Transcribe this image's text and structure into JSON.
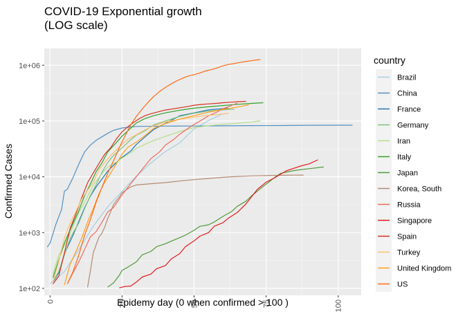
{
  "chart_data": {
    "type": "line",
    "title": [
      "COVID-19 Exponential growth",
      "(LOG scale)"
    ],
    "xlabel": "Epidemy day (0 when confirmed > 100 )",
    "ylabel": "Confirmed Cases",
    "xlim": [
      -2,
      108
    ],
    "ylim": [
      75,
      2000000
    ],
    "y_scale": "log10",
    "grid": true,
    "legend_position": "right",
    "legend_title": "country",
    "x_ticks": [
      0,
      25,
      50,
      75,
      100
    ],
    "x_tick_labels": [
      "0",
      "25",
      "50",
      "75",
      "100"
    ],
    "y_ticks": [
      100,
      1000,
      10000,
      100000,
      1000000
    ],
    "y_tick_labels": [
      "1e+02",
      "1e+03",
      "1e+04",
      "1e+05",
      "1e+06"
    ],
    "series": [
      {
        "name": "Brazil",
        "color": "#a6cee3",
        "x": [
          0,
          5,
          10,
          15,
          20,
          25,
          30,
          35,
          40,
          45,
          50,
          55,
          60
        ],
        "y": [
          121,
          200,
          500,
          1300,
          2900,
          5500,
          10300,
          17700,
          28300,
          40700,
          71900,
          101800,
          135100
        ]
      },
      {
        "name": "China",
        "color": "#5090c4",
        "x": [
          -1,
          0,
          2,
          4,
          5,
          6,
          8,
          10,
          12,
          14,
          16,
          18,
          20,
          22,
          25,
          30,
          40,
          50,
          60,
          70,
          80,
          90,
          100,
          105
        ],
        "y": [
          548,
          643,
          1400,
          2600,
          5500,
          6000,
          9700,
          17000,
          28000,
          37000,
          45000,
          52000,
          60000,
          68000,
          75000,
          80000,
          81000,
          81300,
          81900,
          82600,
          83000,
          83900,
          84100,
          84100
        ]
      },
      {
        "name": "France",
        "color": "#1f78b4",
        "x": [
          1,
          3,
          5,
          8,
          10,
          12,
          14,
          16,
          18,
          20,
          22,
          25,
          28,
          30,
          33,
          36,
          40,
          45,
          50,
          55,
          62
        ],
        "y": [
          130,
          190,
          420,
          900,
          1600,
          2800,
          4500,
          6600,
          9100,
          12600,
          16000,
          22300,
          29000,
          38100,
          52100,
          70500,
          90700,
          124000,
          140000,
          158000,
          170000
        ]
      },
      {
        "name": "Germany",
        "color": "#7fbf7b",
        "x": [
          1,
          3,
          5,
          7,
          10,
          12,
          14,
          16,
          18,
          20,
          22,
          25,
          28,
          30,
          33,
          36,
          40,
          45,
          50,
          55,
          60,
          64
        ],
        "y": [
          130,
          200,
          400,
          800,
          1500,
          2700,
          4600,
          7200,
          12000,
          18000,
          24000,
          33000,
          46000,
          56000,
          67000,
          85000,
          100000,
          121000,
          138000,
          150000,
          158000,
          163000
        ]
      },
      {
        "name": "Iran",
        "color": "#b2df8a",
        "x": [
          1,
          3,
          5,
          7,
          10,
          12,
          15,
          18,
          20,
          23,
          25,
          28,
          30,
          33,
          36,
          40,
          45,
          50,
          55,
          60,
          65,
          70,
          73
        ],
        "y": [
          180,
          390,
          590,
          980,
          2300,
          3500,
          7100,
          11400,
          14900,
          18400,
          21600,
          27000,
          32300,
          38300,
          44600,
          53000,
          64600,
          76400,
          82200,
          87000,
          91000,
          96400,
          101000
        ]
      },
      {
        "name": "Italy",
        "color": "#33a02c",
        "x": [
          1,
          3,
          5,
          7,
          10,
          12,
          14,
          16,
          18,
          20,
          23,
          25,
          28,
          30,
          33,
          36,
          40,
          45,
          50,
          55,
          60,
          65,
          70,
          74
        ],
        "y": [
          155,
          320,
          650,
          1130,
          2500,
          4600,
          7400,
          12400,
          17700,
          27900,
          41000,
          53600,
          74300,
          92500,
          110600,
          124600,
          140000,
          156000,
          170000,
          180000,
          189000,
          199000,
          207000,
          213000
        ]
      },
      {
        "name": "Japan",
        "color": "#4f9a3a",
        "x": [
          20,
          22,
          24,
          25,
          27,
          30,
          32,
          35,
          37,
          40,
          42,
          45,
          47,
          50,
          52,
          55,
          57,
          60,
          63,
          65,
          68,
          70,
          72,
          74,
          76,
          78,
          80,
          85,
          90,
          95
        ],
        "y": [
          105,
          125,
          170,
          210,
          240,
          300,
          400,
          460,
          560,
          630,
          700,
          810,
          900,
          1100,
          1290,
          1380,
          1550,
          1950,
          2380,
          2960,
          3660,
          4580,
          5560,
          6750,
          8100,
          9800,
          11500,
          13000,
          14000,
          15000
        ]
      },
      {
        "name": "Korea, South",
        "color": "#b58a72",
        "x": [
          13,
          14,
          15,
          16,
          17,
          18,
          19,
          20,
          21,
          22,
          23,
          24,
          25,
          26,
          27,
          28,
          30,
          35,
          40,
          45,
          50,
          55,
          60,
          65,
          70,
          75,
          80,
          85,
          88
        ],
        "y": [
          104,
          204,
          433,
          602,
          833,
          977,
          1261,
          1766,
          2337,
          3150,
          3736,
          4335,
          5186,
          5621,
          6088,
          6593,
          7134,
          7513,
          7869,
          8413,
          8897,
          9332,
          9786,
          10156,
          10384,
          10512,
          10635,
          10699,
          10752
        ]
      },
      {
        "name": "Russia",
        "color": "#ee6a60",
        "x": [
          6,
          8,
          10,
          12,
          14,
          16,
          18,
          20,
          22,
          25,
          28,
          30,
          33,
          35,
          38,
          40,
          43,
          45,
          48,
          50,
          53,
          55,
          58,
          60,
          63,
          65
        ],
        "y": [
          120,
          190,
          300,
          500,
          840,
          1040,
          1530,
          2340,
          2800,
          4730,
          7500,
          10100,
          15800,
          21100,
          27900,
          36800,
          47100,
          57900,
          74600,
          87100,
          106500,
          124100,
          145300,
          165900,
          189900,
          209700
        ]
      },
      {
        "name": "Singapore",
        "color": "#e31a1c",
        "x": [
          24,
          26,
          28,
          30,
          32,
          35,
          37,
          40,
          42,
          45,
          47,
          50,
          52,
          55,
          57,
          60,
          62,
          65,
          68,
          70,
          72,
          75,
          78,
          80,
          82,
          85,
          87,
          90,
          93
        ],
        "y": [
          102,
          108,
          110,
          130,
          160,
          180,
          226,
          255,
          335,
          420,
          560,
          710,
          860,
          1000,
          1300,
          1500,
          1830,
          2300,
          3270,
          4430,
          5990,
          8000,
          9600,
          11100,
          12800,
          14400,
          15600,
          17100,
          20200
        ]
      },
      {
        "name": "Spain",
        "color": "#d7301f",
        "x": [
          1,
          3,
          5,
          7,
          9,
          11,
          13,
          15,
          17,
          19,
          21,
          23,
          25,
          27,
          29,
          31,
          33,
          35,
          38,
          40,
          43,
          45,
          48,
          50,
          53,
          55,
          58,
          60,
          63,
          65,
          68
        ],
        "y": [
          120,
          165,
          430,
          1200,
          2200,
          4200,
          7800,
          11700,
          17400,
          25400,
          33100,
          47600,
          64000,
          78800,
          94400,
          110200,
          124700,
          135000,
          148200,
          157000,
          166000,
          172500,
          182800,
          191700,
          198600,
          202900,
          207600,
          212900,
          217500,
          221500,
          225000
        ]
      },
      {
        "name": "Turkey",
        "color": "#fdbf6f",
        "x": [
          1,
          3,
          5,
          7,
          9,
          11,
          13,
          15,
          17,
          19,
          21,
          23,
          25,
          27,
          30,
          33,
          36,
          40,
          45,
          50,
          55,
          62
        ],
        "y": [
          130,
          300,
          800,
          1500,
          2400,
          4000,
          5700,
          8000,
          13500,
          18100,
          23900,
          30200,
          38200,
          47000,
          56900,
          69400,
          82300,
          95600,
          107800,
          117600,
          126000,
          137000
        ]
      },
      {
        "name": "United Kingdom",
        "color": "#ff9f1c",
        "x": [
          5,
          7,
          9,
          11,
          13,
          15,
          17,
          19,
          21,
          23,
          25,
          27,
          30,
          33,
          36,
          40,
          45,
          50,
          55,
          60,
          65,
          69
        ],
        "y": [
          115,
          273,
          460,
          800,
          1540,
          2700,
          5000,
          8000,
          11600,
          17100,
          25500,
          33700,
          42000,
          55200,
          73800,
          89600,
          108000,
          124700,
          143500,
          161100,
          177500,
          194990
        ]
      },
      {
        "name": "US",
        "color": "#ff6a13",
        "x": [
          6,
          8,
          10,
          12,
          14,
          16,
          18,
          20,
          22,
          24,
          26,
          28,
          30,
          32,
          34,
          36,
          38,
          40,
          42,
          44,
          46,
          48,
          50,
          52,
          54,
          56,
          58,
          60,
          62,
          64,
          66,
          68,
          70,
          72,
          73
        ],
        "y": [
          120,
          200,
          400,
          900,
          1700,
          3500,
          6500,
          11500,
          19100,
          33000,
          53700,
          85400,
          121500,
          164700,
          215000,
          275600,
          337000,
          398800,
          461400,
          524900,
          585000,
          639600,
          677600,
          723600,
          790600,
          832400,
          893300,
          974700,
          1035000,
          1069000,
          1122600,
          1165000,
          1205700,
          1247300,
          1257000
        ]
      }
    ]
  }
}
